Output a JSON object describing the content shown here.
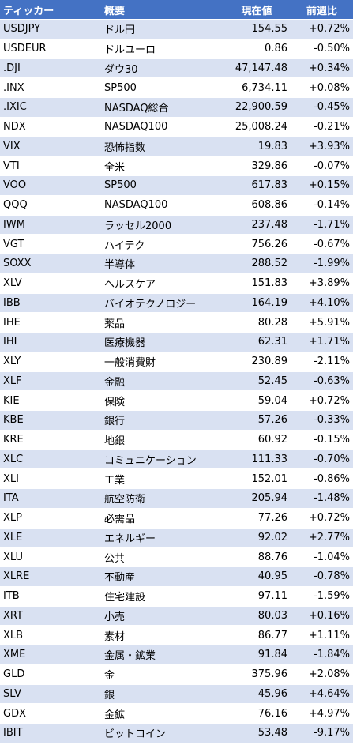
{
  "header": {
    "ticker": "ティッカー",
    "summary": "概要",
    "price": "現在値",
    "change": "前週比"
  },
  "rows": [
    {
      "ticker": "USDJPY",
      "summary": "ドル円",
      "price": "154.55",
      "change": "+0.72%"
    },
    {
      "ticker": "USDEUR",
      "summary": "ドルユーロ",
      "price": "0.86",
      "change": "-0.50%"
    },
    {
      "ticker": ".DJI",
      "summary": "ダウ30",
      "price": "47,147.48",
      "change": "+0.34%"
    },
    {
      "ticker": ".INX",
      "summary": "SP500",
      "price": "6,734.11",
      "change": "+0.08%"
    },
    {
      "ticker": ".IXIC",
      "summary": "NASDAQ総合",
      "price": "22,900.59",
      "change": "-0.45%"
    },
    {
      "ticker": "NDX",
      "summary": "NASDAQ100",
      "price": "25,008.24",
      "change": "-0.21%"
    },
    {
      "ticker": "VIX",
      "summary": "恐怖指数",
      "price": "19.83",
      "change": "+3.93%"
    },
    {
      "ticker": "VTI",
      "summary": "全米",
      "price": "329.86",
      "change": "-0.07%"
    },
    {
      "ticker": "VOO",
      "summary": "SP500",
      "price": "617.83",
      "change": "+0.15%"
    },
    {
      "ticker": "QQQ",
      "summary": "NASDAQ100",
      "price": "608.86",
      "change": "-0.14%"
    },
    {
      "ticker": "IWM",
      "summary": "ラッセル2000",
      "price": "237.48",
      "change": "-1.71%"
    },
    {
      "ticker": "VGT",
      "summary": "ハイテク",
      "price": "756.26",
      "change": "-0.67%"
    },
    {
      "ticker": "SOXX",
      "summary": "半導体",
      "price": "288.52",
      "change": "-1.99%"
    },
    {
      "ticker": "XLV",
      "summary": "ヘルスケア",
      "price": "151.83",
      "change": "+3.89%"
    },
    {
      "ticker": "IBB",
      "summary": "バイオテクノロジー",
      "price": "164.19",
      "change": "+4.10%"
    },
    {
      "ticker": "IHE",
      "summary": "薬品",
      "price": "80.28",
      "change": "+5.91%"
    },
    {
      "ticker": "IHI",
      "summary": "医療機器",
      "price": "62.31",
      "change": "+1.71%"
    },
    {
      "ticker": "XLY",
      "summary": "一般消費財",
      "price": "230.89",
      "change": "-2.11%"
    },
    {
      "ticker": "XLF",
      "summary": "金融",
      "price": "52.45",
      "change": "-0.63%"
    },
    {
      "ticker": "KIE",
      "summary": "保険",
      "price": "59.04",
      "change": "+0.72%"
    },
    {
      "ticker": "KBE",
      "summary": "銀行",
      "price": "57.26",
      "change": "-0.33%"
    },
    {
      "ticker": "KRE",
      "summary": "地銀",
      "price": "60.92",
      "change": "-0.15%"
    },
    {
      "ticker": "XLC",
      "summary": "コミュニケーション",
      "price": "111.33",
      "change": "-0.70%"
    },
    {
      "ticker": "XLI",
      "summary": "工業",
      "price": "152.01",
      "change": "-0.86%"
    },
    {
      "ticker": "ITA",
      "summary": "航空防衛",
      "price": "205.94",
      "change": "-1.48%"
    },
    {
      "ticker": "XLP",
      "summary": "必需品",
      "price": "77.26",
      "change": "+0.72%"
    },
    {
      "ticker": "XLE",
      "summary": "エネルギー",
      "price": "92.02",
      "change": "+2.77%"
    },
    {
      "ticker": "XLU",
      "summary": "公共",
      "price": "88.76",
      "change": "-1.04%"
    },
    {
      "ticker": "XLRE",
      "summary": "不動産",
      "price": "40.95",
      "change": "-0.78%"
    },
    {
      "ticker": "ITB",
      "summary": "住宅建設",
      "price": "97.11",
      "change": "-1.59%"
    },
    {
      "ticker": "XRT",
      "summary": "小売",
      "price": "80.03",
      "change": "+0.16%"
    },
    {
      "ticker": "XLB",
      "summary": "素材",
      "price": "86.77",
      "change": "+1.11%"
    },
    {
      "ticker": "XME",
      "summary": "金属・鉱業",
      "price": "91.84",
      "change": "-1.84%"
    },
    {
      "ticker": "GLD",
      "summary": "金",
      "price": "375.96",
      "change": "+2.08%"
    },
    {
      "ticker": "SLV",
      "summary": "銀",
      "price": "45.96",
      "change": "+4.64%"
    },
    {
      "ticker": "GDX",
      "summary": "金鉱",
      "price": "76.16",
      "change": "+4.97%"
    },
    {
      "ticker": "IBIT",
      "summary": "ビットコイン",
      "price": "53.48",
      "change": "-9.17%"
    }
  ]
}
